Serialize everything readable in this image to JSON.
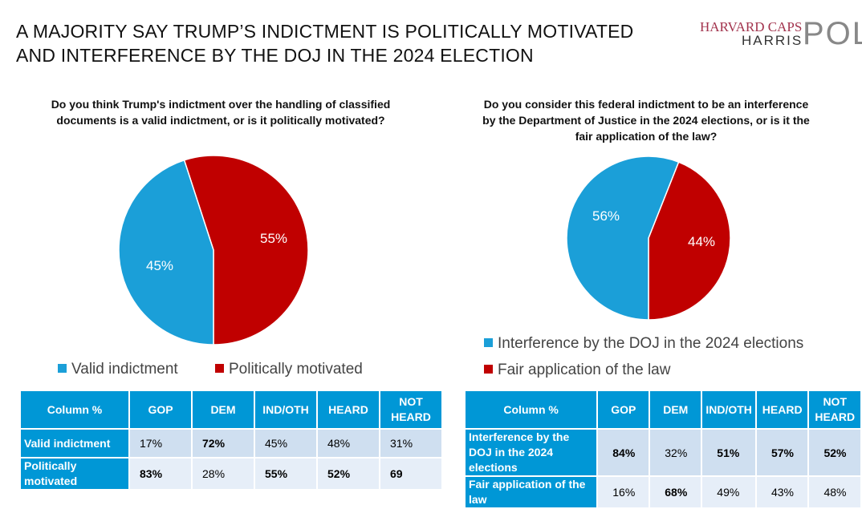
{
  "title": [
    "A MAJORITY SAY TRUMP’S INDICTMENT IS POLITICALLY MOTIVATED",
    "AND INTERFERENCE BY THE DOJ IN THE 2024 ELECTION"
  ],
  "logo": {
    "line1": "HARVARD CAPS",
    "line2": "HARRIS",
    "line3": "POLL"
  },
  "chart_data": [
    {
      "type": "pie",
      "title": "Do you think Trump's indictment over the handling of classified documents is a valid indictment, or is it politically motivated?",
      "series": [
        {
          "name": "Valid indictment",
          "value": 45,
          "label": "45%",
          "color": "#1b9fd8"
        },
        {
          "name": "Politically motivated",
          "value": 55,
          "label": "55%",
          "color": "#c00000"
        }
      ],
      "legend": "bottom"
    },
    {
      "type": "pie",
      "title": "Do you consider this federal indictment to be an interference by the Department of Justice in the 2024 elections, or is it the fair application of the law?",
      "series": [
        {
          "name": "Interference by the DOJ in the 2024 elections",
          "value": 56,
          "label": "56%",
          "color": "#1b9fd8"
        },
        {
          "name": "Fair application of the law",
          "value": 44,
          "label": "44%",
          "color": "#c00000"
        }
      ],
      "legend": "bottom"
    }
  ],
  "tables": [
    {
      "headers": [
        "Column %",
        "GOP",
        "DEM",
        "IND/OTH",
        "HEARD",
        "NOT HEARD"
      ],
      "rows": [
        {
          "label": "Valid indictment",
          "cells": [
            "17%",
            "72%",
            "45%",
            "48%",
            "31%"
          ],
          "bold": [
            false,
            true,
            false,
            false,
            false
          ]
        },
        {
          "label": "Politically motivated",
          "cells": [
            "83%",
            "28%",
            "55%",
            "52%",
            "69"
          ],
          "bold": [
            true,
            false,
            true,
            true,
            true
          ]
        }
      ]
    },
    {
      "headers": [
        "Column %",
        "GOP",
        "DEM",
        "IND/OTH",
        "HEARD",
        "NOT HEARD"
      ],
      "rows": [
        {
          "label": "Interference by the DOJ in the 2024 elections",
          "cells": [
            "84%",
            "32%",
            "51%",
            "57%",
            "52%"
          ],
          "bold": [
            true,
            false,
            true,
            true,
            true
          ]
        },
        {
          "label": "Fair application of the law",
          "cells": [
            "16%",
            "68%",
            "49%",
            "43%",
            "48%"
          ],
          "bold": [
            false,
            true,
            false,
            false,
            false
          ]
        }
      ]
    }
  ]
}
